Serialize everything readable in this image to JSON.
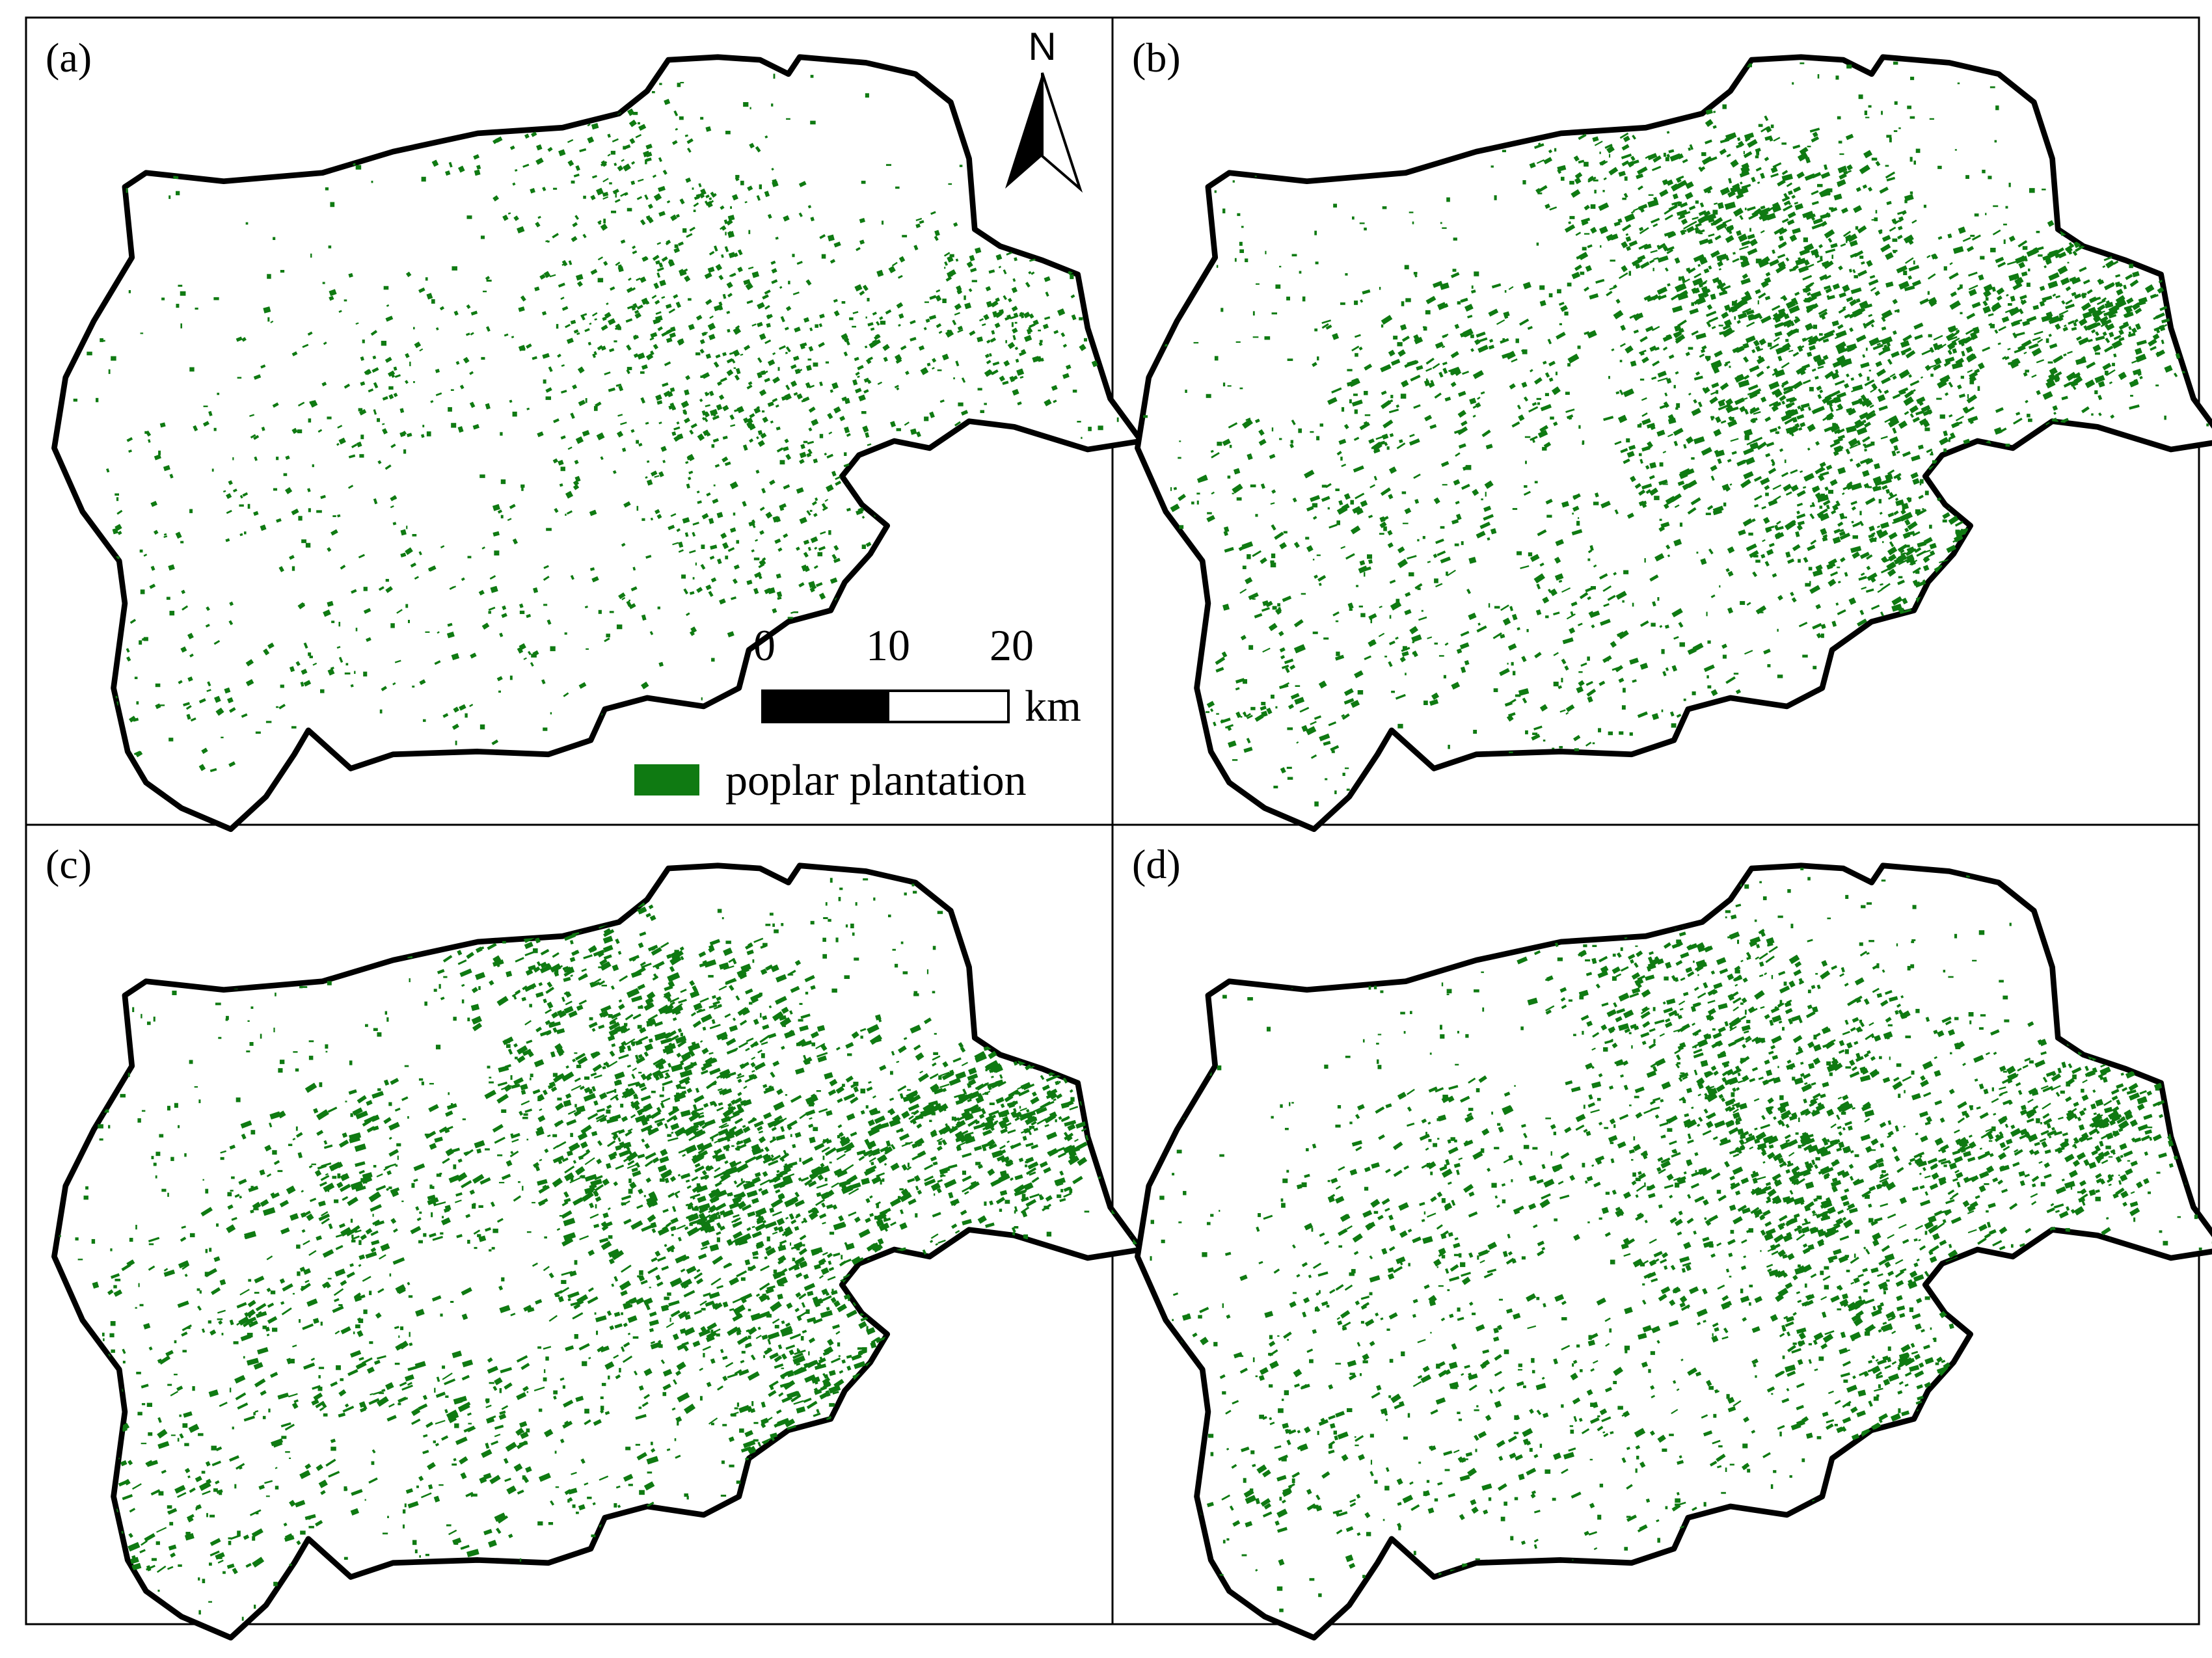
{
  "panels": [
    {
      "label": "(a)",
      "density": 0.55
    },
    {
      "label": "(b)",
      "density": 1.0
    },
    {
      "label": "(c)",
      "density": 1.15
    },
    {
      "label": "(d)",
      "density": 0.95
    }
  ],
  "north_arrow": {
    "letter": "N"
  },
  "scale_bar": {
    "ticks": [
      "0",
      "10",
      "20"
    ],
    "unit": "km"
  },
  "legend": {
    "label": "poplar plantation",
    "color": "#0f7a12"
  },
  "colors": {
    "plantation": "#0f7a12",
    "boundary": "#000000",
    "background": "#ffffff"
  }
}
